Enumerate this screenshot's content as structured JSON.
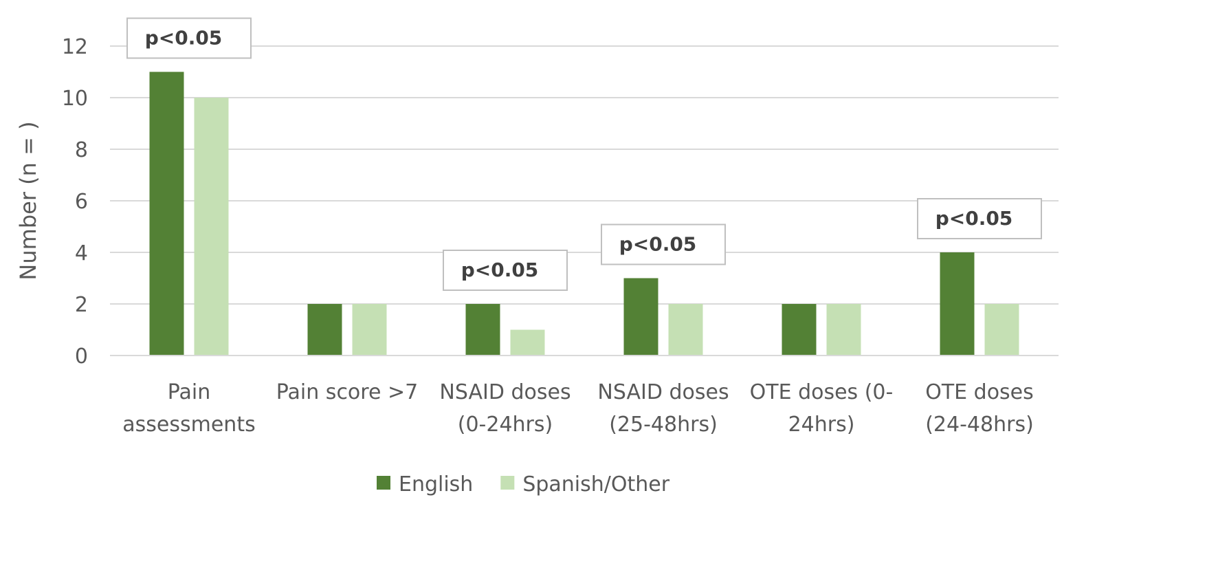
{
  "chart_data": {
    "type": "bar",
    "ylabel": "Number (n = )",
    "ylim": [
      0,
      12
    ],
    "yticks": [
      0,
      2,
      4,
      6,
      8,
      10,
      12
    ],
    "grid": true,
    "legend_position": "bottom",
    "categories": [
      [
        "Pain",
        "assessments"
      ],
      [
        "Pain score >7"
      ],
      [
        "NSAID doses",
        "(0-24hrs)"
      ],
      [
        "NSAID doses",
        "(25-48hrs)"
      ],
      [
        "OTE doses (0-",
        "24hrs)"
      ],
      [
        "OTE doses",
        "(24-48hrs)"
      ]
    ],
    "series": [
      {
        "name": "English",
        "color": "#538135",
        "values": [
          11,
          2,
          2,
          3,
          2,
          4
        ]
      },
      {
        "name": "Spanish/Other",
        "color": "#c5e0b4",
        "values": [
          10,
          2,
          1,
          2,
          2,
          2
        ]
      }
    ],
    "annotations": [
      {
        "category_index": 0,
        "text": "p<0.05"
      },
      {
        "category_index": 2,
        "text": "p<0.05"
      },
      {
        "category_index": 3,
        "text": "p<0.05"
      },
      {
        "category_index": 5,
        "text": "p<0.05"
      }
    ]
  }
}
